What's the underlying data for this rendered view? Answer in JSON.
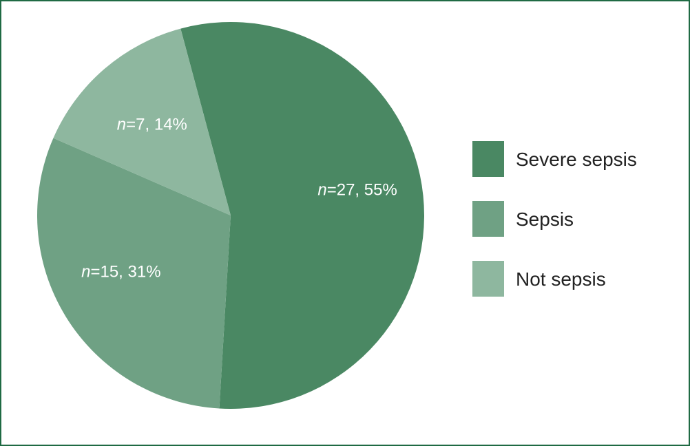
{
  "chart_data": {
    "type": "pie",
    "slices": [
      {
        "label": "Severe sepsis",
        "n": 27,
        "percent": 55,
        "n_prefix": "n",
        "value_text": "=27, 55%",
        "color": "#4a8863"
      },
      {
        "label": "Sepsis",
        "n": 15,
        "percent": 31,
        "n_prefix": "n",
        "value_text": "=15, 31%",
        "color": "#6fa184"
      },
      {
        "label": "Not sepsis",
        "n": 7,
        "percent": 14,
        "n_prefix": "n",
        "value_text": "=7, 14%",
        "color": "#8eb79f"
      }
    ],
    "legend_position": "right",
    "start_angle_deg": -15,
    "direction": "clockwise"
  },
  "theme": {
    "border_color": "#1f6a43",
    "label_color": "#ffffff",
    "legend_text_color": "#222222"
  }
}
